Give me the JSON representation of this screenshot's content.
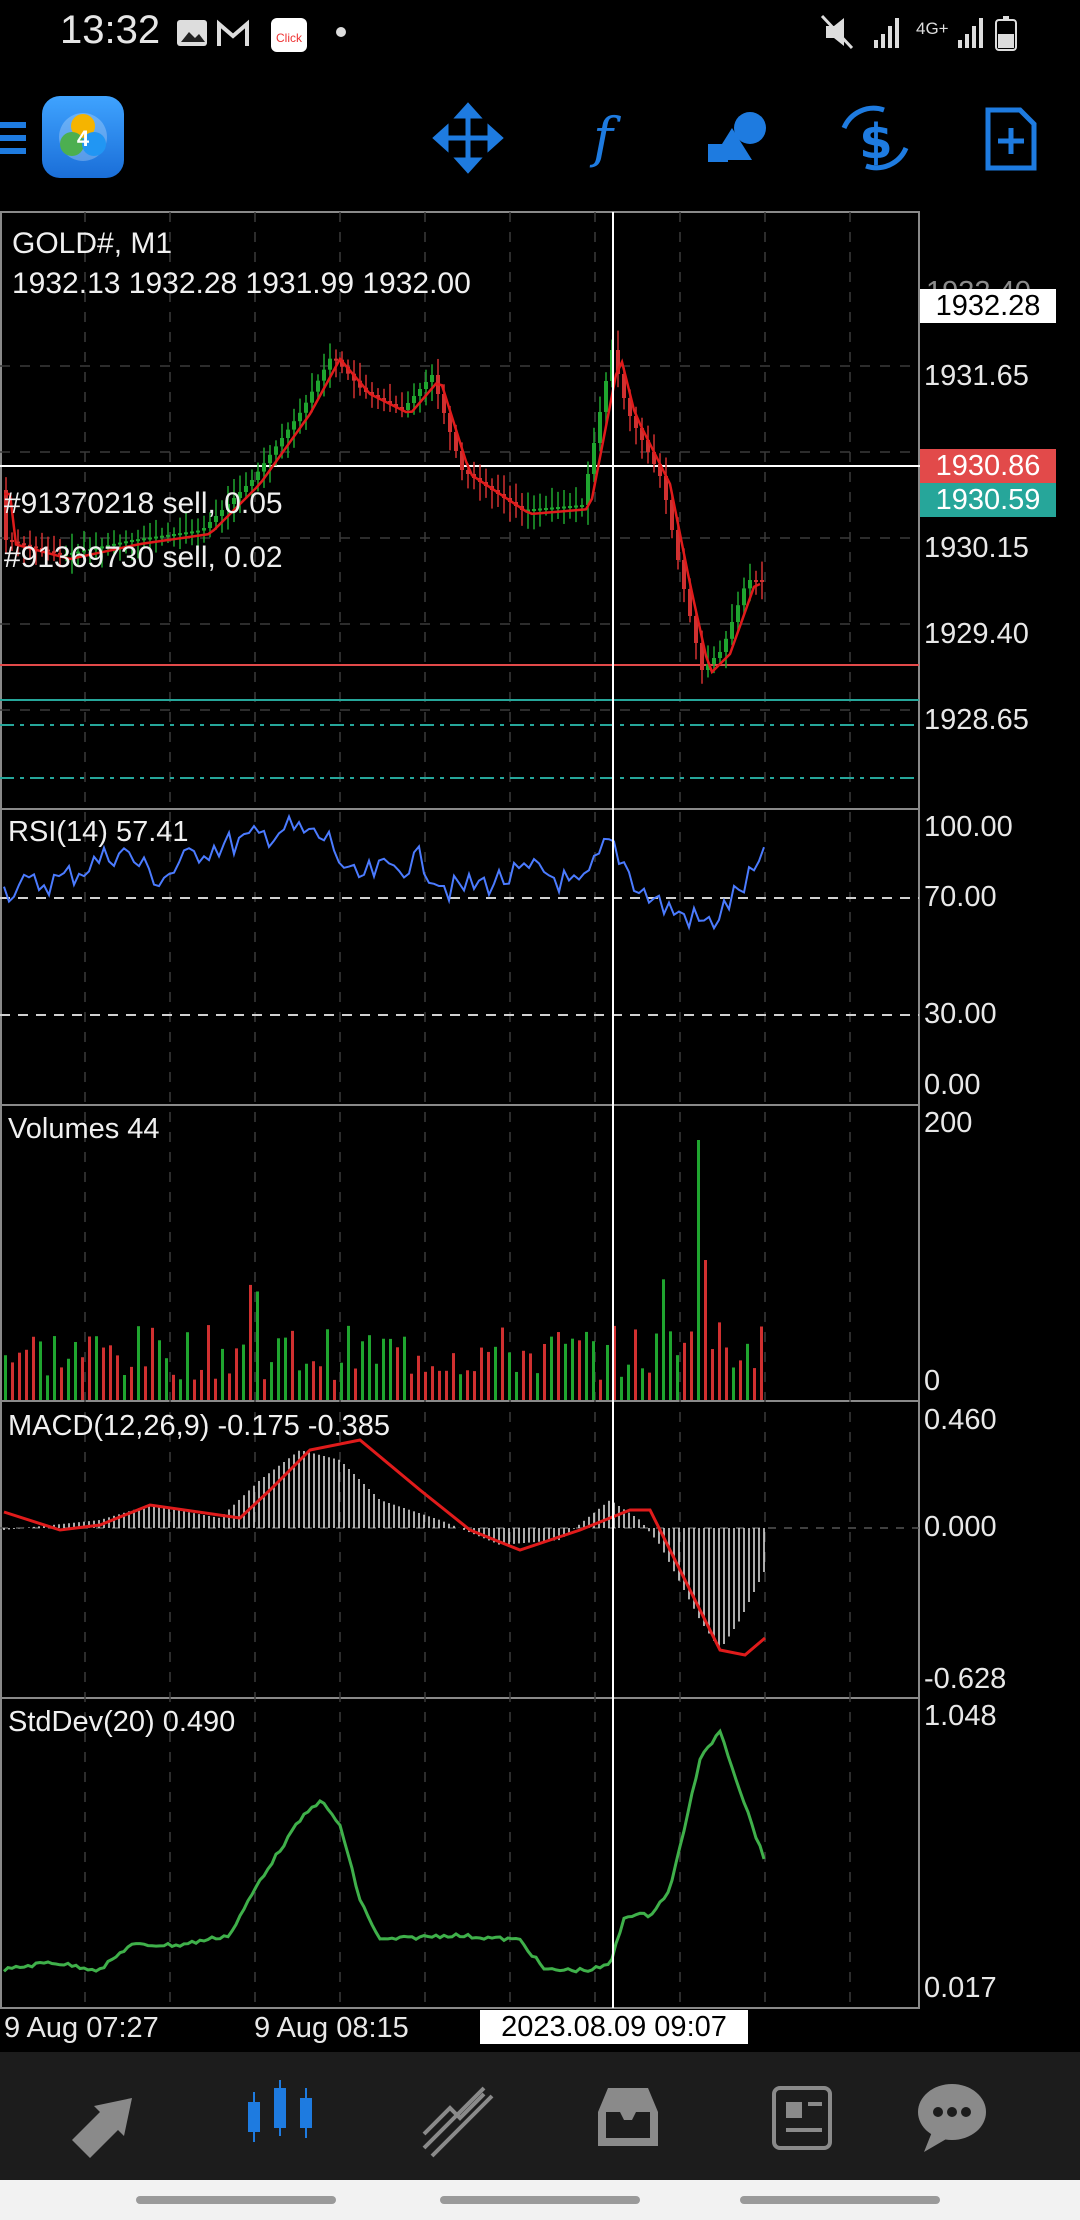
{
  "status_bar": {
    "time": "13:32",
    "notification_icons": [
      "image-icon",
      "gmail-icon",
      "click-app-icon",
      "dot-icon"
    ],
    "system_icons": [
      "mute-icon",
      "signal-icon",
      "4g-icon",
      "signal-icon",
      "battery-icon"
    ],
    "network_label": "4G+"
  },
  "toolbar": {
    "app_logo_letter": "4",
    "tools": [
      "crosshair-icon",
      "indicators-icon",
      "objects-icon",
      "trade-icon",
      "new-order-icon"
    ],
    "indicator_glyph": "f"
  },
  "chart": {
    "symbol_label": "GOLD#, M1",
    "ohlc_label": "1932.13 1932.28 1931.99 1932.00",
    "price_axis_labels": [
      "1931.65",
      "1930.15",
      "1929.40",
      "1928.65"
    ],
    "partial_top_label": "1932.40",
    "crosshair_price": "1932.28",
    "ask_price": "1930.86",
    "bid_price": "1930.59",
    "orders": [
      "#91370218 sell, 0.05",
      "#91369730 sell, 0.02"
    ],
    "colors": {
      "ask": "#e24a4a",
      "bid": "#26a69a",
      "ma": "#e01b1b",
      "bull": "#1fa52f",
      "bear": "#d03030"
    },
    "time_labels": [
      "9 Aug 07:27",
      "9 Aug 08:15"
    ],
    "crosshair_time": "2023.08.09 09:07"
  },
  "rsi": {
    "title": "RSI(14) 57.41",
    "levels": [
      "100.00",
      "70.00",
      "30.00",
      "0.00"
    ]
  },
  "volumes": {
    "title": "Volumes 44",
    "levels": [
      "200",
      "0"
    ]
  },
  "macd": {
    "title": "MACD(12,26,9) -0.175 -0.385",
    "levels": [
      "0.460",
      "0.000",
      "-0.628"
    ]
  },
  "stddev": {
    "title": "StdDev(20) 0.490",
    "levels": [
      "1.048",
      "0.017"
    ]
  },
  "bottom_nav": {
    "items": [
      "quotes-icon",
      "chart-icon",
      "trade-icon",
      "history-icon",
      "news-icon",
      "chat-icon"
    ],
    "active": "chart-icon"
  }
}
